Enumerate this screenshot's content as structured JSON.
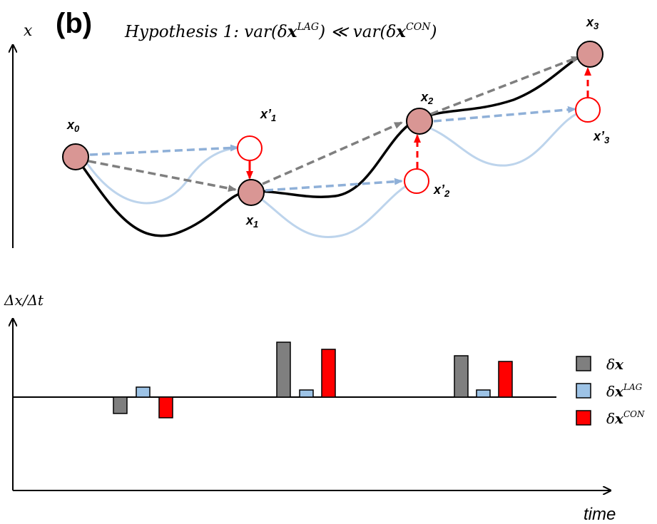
{
  "panel_label": "(b)",
  "hypothesis": {
    "prefix": "Hypothesis 1: var(δ",
    "bold_x1": "x",
    "sup1": "LAG",
    "middle": ") ≪ var(δ",
    "bold_x2": "x",
    "sup2": "CON",
    "suffix": ")"
  },
  "top_plot": {
    "y_axis_label": "x",
    "nodes": [
      {
        "id": "x0",
        "label": "x",
        "sub": "0"
      },
      {
        "id": "x1",
        "label": "x",
        "sub": "1"
      },
      {
        "id": "x2",
        "label": "x",
        "sub": "2"
      },
      {
        "id": "x3",
        "label": "x",
        "sub": "3"
      }
    ],
    "predicted_nodes": [
      {
        "id": "x1p",
        "label": "x’",
        "sub": "1"
      },
      {
        "id": "x2p",
        "label": "x’",
        "sub": "2"
      },
      {
        "id": "x3p",
        "label": "x’",
        "sub": "3"
      }
    ]
  },
  "bottom_plot": {
    "y_axis_label": "Δx/Δt",
    "x_axis_label": "time",
    "legend": [
      {
        "sym": "δ",
        "bold": "x",
        "sup": "",
        "color": "#7f7f7f"
      },
      {
        "sym": "δ",
        "bold": "x",
        "sup": "LAG",
        "color": "#9dc3e6"
      },
      {
        "sym": "δ",
        "bold": "x",
        "sup": "CON",
        "color": "#ff0000"
      }
    ]
  },
  "colors": {
    "node_fill": "#d99694",
    "predicted_stroke": "#ff0000",
    "gray_arrow": "#7f7f7f",
    "blue_arrow": "#8fb0d8",
    "blue_curve": "#bdd4ec",
    "red_arrow": "#ff0000",
    "bar_gray": "#7f7f7f",
    "bar_blue": "#9dc3e6",
    "bar_red": "#ff0000"
  }
}
